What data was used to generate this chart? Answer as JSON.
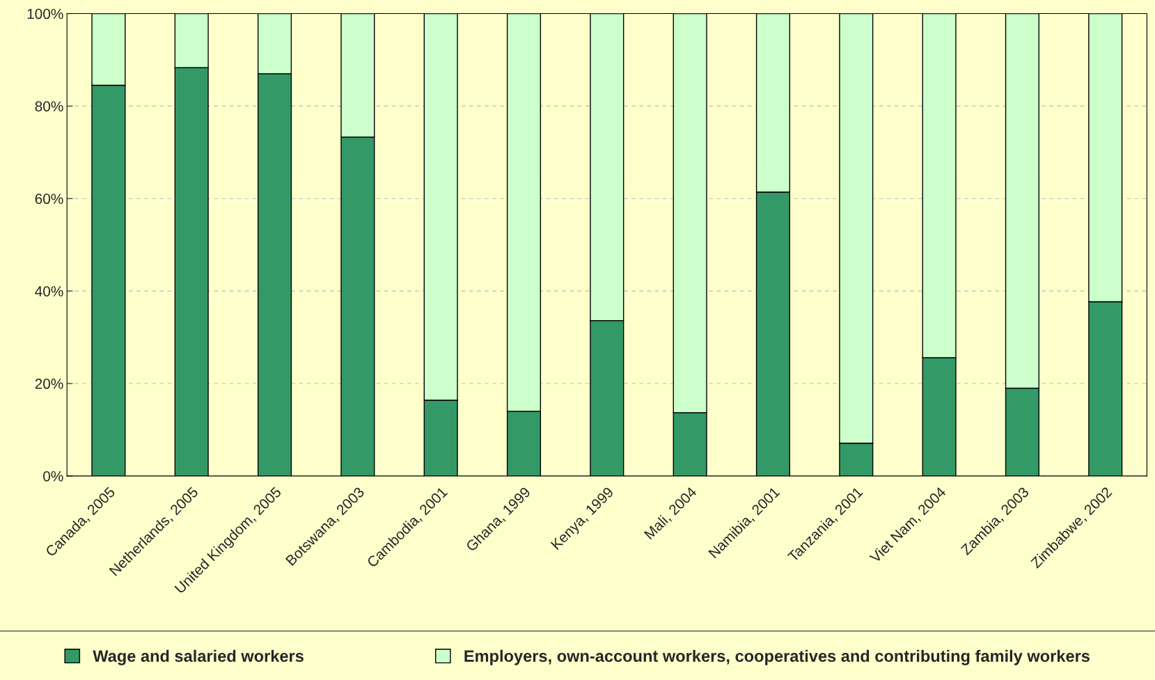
{
  "chart_data": {
    "type": "bar",
    "stacked": true,
    "categories": [
      "Canada, 2005",
      "Netherlands, 2005",
      "United Kingdom, 2005",
      "Botswana, 2003",
      "Cambodia, 2001",
      "Ghana, 1999",
      "Kenya, 1999",
      "Mali, 2004",
      "Namibia, 2001",
      "Tanzania, 2001",
      "Viet Nam, 2004",
      "Zambia, 2003",
      "Zimbabwe, 2002"
    ],
    "series": [
      {
        "name": "Wage and salaried workers",
        "color": "#339966",
        "values": [
          84.5,
          88.3,
          87.0,
          73.3,
          16.4,
          14.0,
          33.6,
          13.7,
          61.4,
          7.1,
          25.6,
          19.0,
          37.7
        ]
      },
      {
        "name": "Employers, own-account workers, cooperatives and contributing family workers",
        "color": "#ccffcc",
        "values": [
          15.5,
          11.7,
          13.0,
          26.7,
          83.6,
          86.0,
          66.4,
          86.3,
          38.6,
          92.9,
          74.4,
          81.0,
          62.3
        ]
      }
    ],
    "ylim": [
      0,
      100
    ],
    "yticks": [
      {
        "value": 0,
        "label": "0%"
      },
      {
        "value": 20,
        "label": "20%"
      },
      {
        "value": 40,
        "label": "40%"
      },
      {
        "value": 60,
        "label": "60%"
      },
      {
        "value": 80,
        "label": "80%"
      },
      {
        "value": 100,
        "label": "100%"
      }
    ],
    "grid": "y",
    "legend": "bottom"
  }
}
